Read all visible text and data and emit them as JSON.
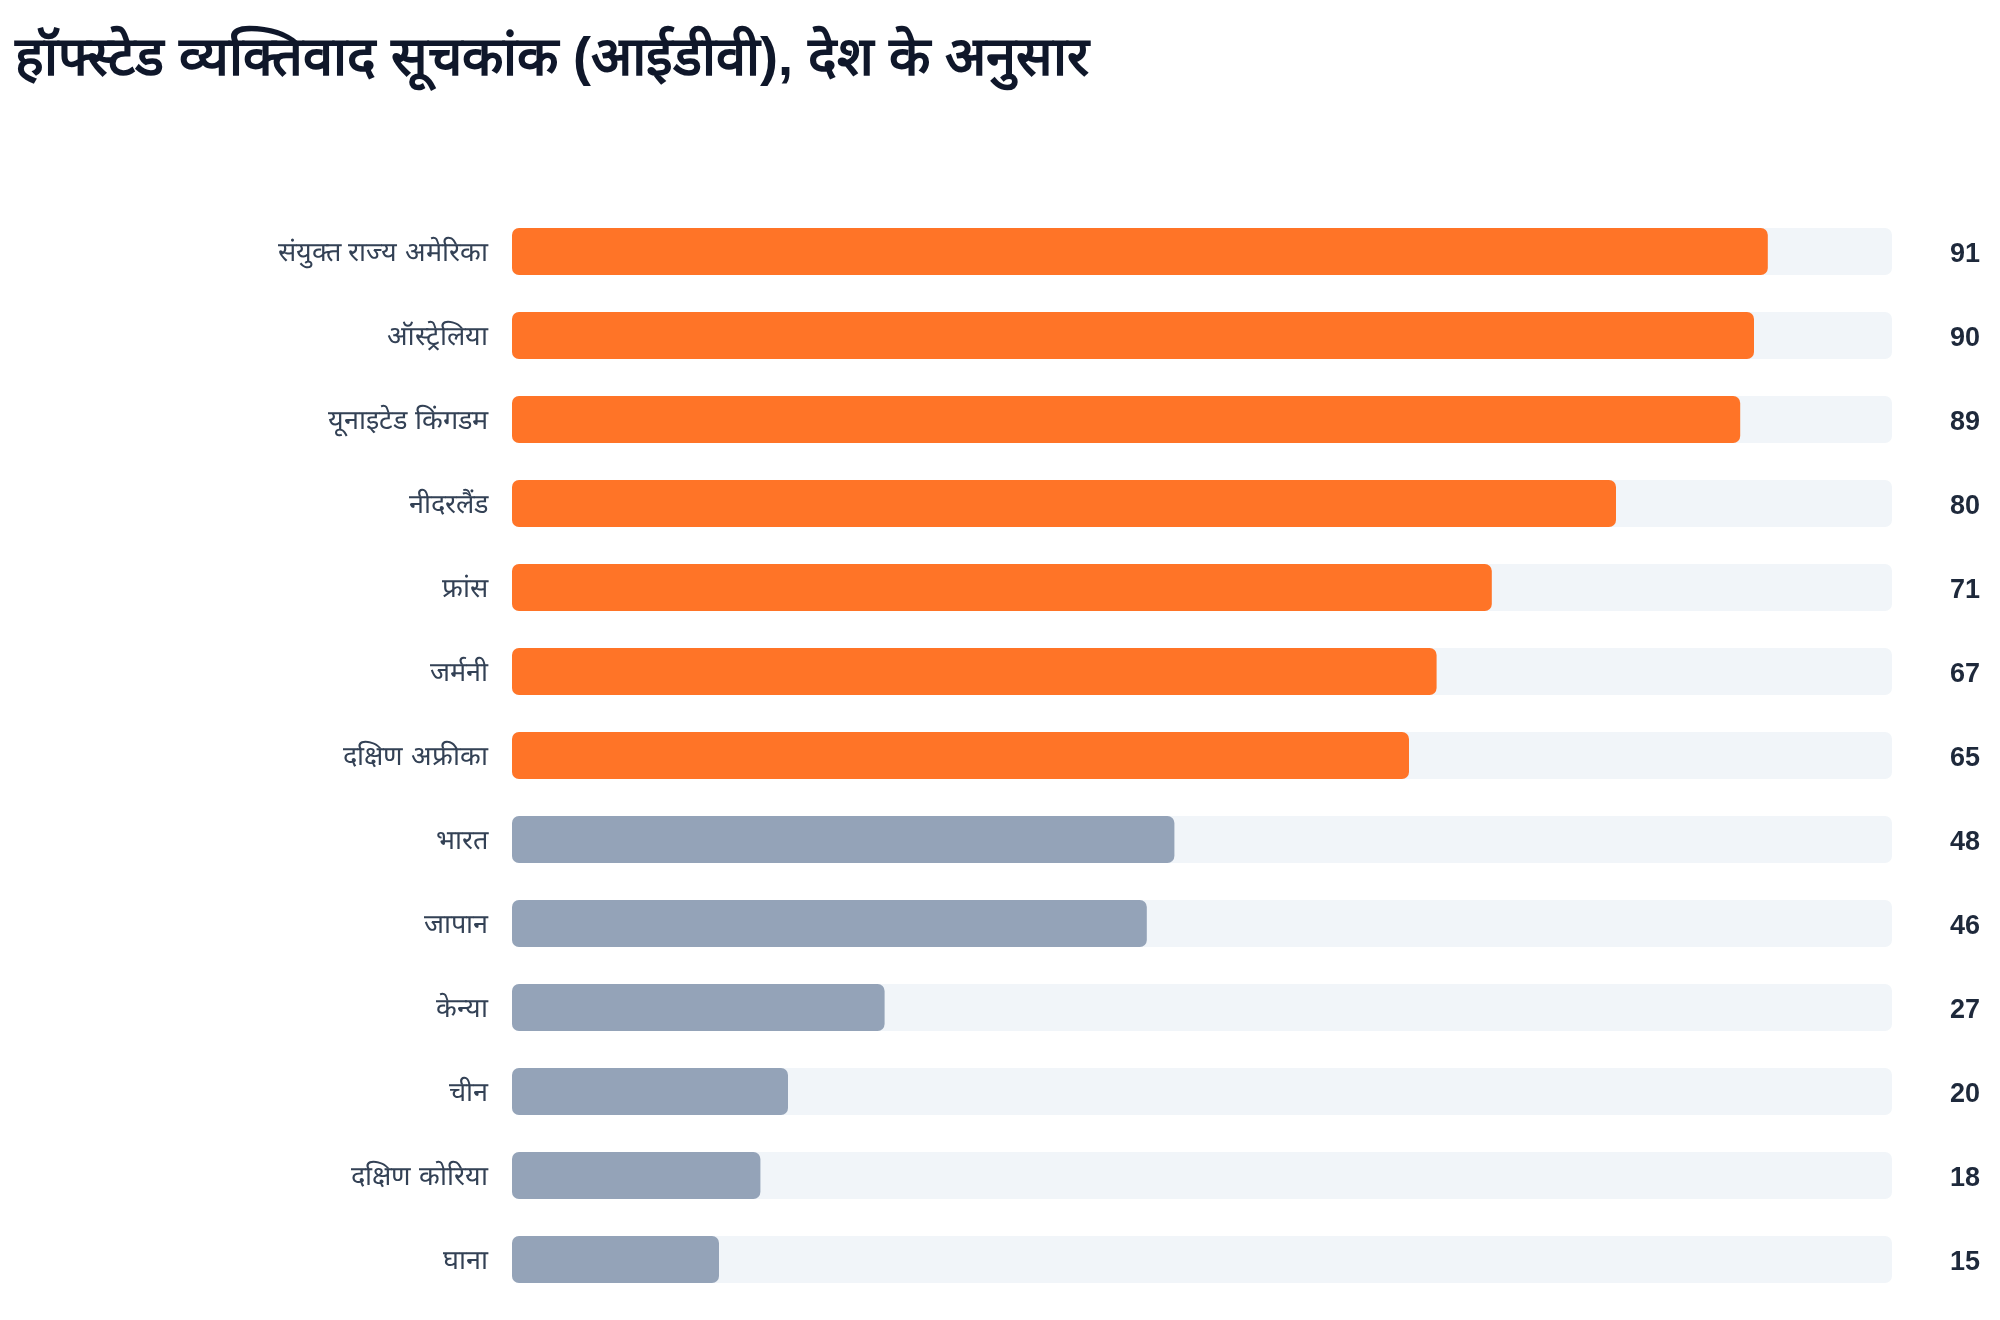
{
  "chart_data": {
    "type": "bar",
    "orientation": "horizontal",
    "title": "हॉफ्स्टेड व्यक्तिवाद सूचकांक (आईडीवी), देश के अनुसार",
    "categories": [
      "संयुक्त राज्य अमेरिका",
      "ऑस्ट्रेलिया",
      "यूनाइटेड किंगडम",
      "नीदरलैंड",
      "फ्रांस",
      "जर्मनी",
      "दक्षिण अफ्रीका",
      "भारत",
      "जापान",
      "केन्या",
      "चीन",
      "दक्षिण कोरिया",
      "घाना"
    ],
    "values": [
      91,
      90,
      89,
      80,
      71,
      67,
      65,
      48,
      46,
      27,
      20,
      18,
      15
    ],
    "colors": [
      "#ff7427",
      "#ff7427",
      "#ff7427",
      "#ff7427",
      "#ff7427",
      "#ff7427",
      "#ff7427",
      "#94a3b8",
      "#94a3b8",
      "#94a3b8",
      "#94a3b8",
      "#94a3b8",
      "#94a3b8"
    ],
    "xlim": [
      0,
      100
    ],
    "data_labels": true
  }
}
